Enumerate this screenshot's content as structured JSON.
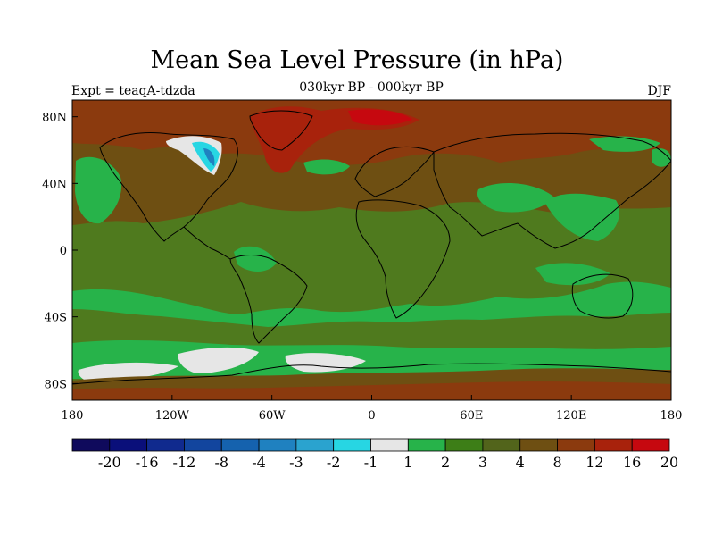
{
  "title": "Mean Sea Level Pressure (in hPa)",
  "subtitle": "030kyr BP - 000kyr BP",
  "left_label": "Expt = teaqA-tdzda",
  "right_label": "DJF",
  "map": {
    "lon_range": [
      -180,
      180
    ],
    "lat_range": [
      -90,
      90
    ],
    "x_ticks": [
      {
        "value": -180,
        "label": "180"
      },
      {
        "value": -120,
        "label": "120W"
      },
      {
        "value": -60,
        "label": "60W"
      },
      {
        "value": 0,
        "label": "0"
      },
      {
        "value": 60,
        "label": "60E"
      },
      {
        "value": 120,
        "label": "120E"
      },
      {
        "value": 180,
        "label": "180"
      }
    ],
    "y_ticks": [
      {
        "value": 80,
        "label": "80N"
      },
      {
        "value": 40,
        "label": "40N"
      },
      {
        "value": 0,
        "label": "0"
      },
      {
        "value": -40,
        "label": "40S"
      },
      {
        "value": -80,
        "label": "80S"
      }
    ],
    "background_color": "#4f7a1e",
    "coastline_color": "#000000"
  },
  "colorbar": {
    "levels": [
      "-20",
      "-16",
      "-12",
      "-8",
      "-4",
      "-3",
      "-2",
      "-1",
      "1",
      "2",
      "3",
      "4",
      "8",
      "12",
      "16",
      "20"
    ],
    "colors": [
      "#0f0a5c",
      "#0a0f7a",
      "#102a8e",
      "#12459e",
      "#1562ae",
      "#1f81c0",
      "#2aa3cf",
      "#27d6e3",
      "#e6e6e6",
      "#27b34a",
      "#3d7e17",
      "#52641b",
      "#6e4f12",
      "#8b3a0e",
      "#a8220c",
      "#c6080f"
    ]
  }
}
